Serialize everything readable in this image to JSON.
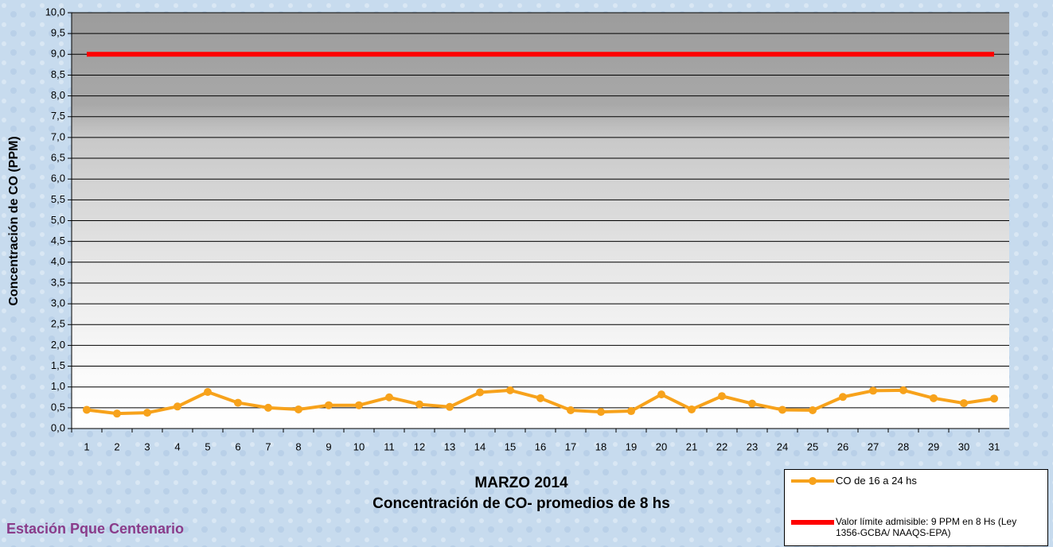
{
  "chart_data": {
    "type": "line",
    "title": "MARZO 2014",
    "subtitle": "Concentración de CO- promedios de 8 hs",
    "annotation": "Estación Pque Centenario",
    "y_label": "Concentración de CO (PPM)",
    "categories": [
      "1",
      "2",
      "3",
      "4",
      "5",
      "6",
      "7",
      "8",
      "9",
      "10",
      "11",
      "12",
      "13",
      "14",
      "15",
      "16",
      "17",
      "18",
      "19",
      "20",
      "21",
      "22",
      "23",
      "24",
      "25",
      "26",
      "27",
      "28",
      "29",
      "30",
      "31"
    ],
    "series": [
      {
        "name": "CO de 16 a 24 hs",
        "color": "#f7a21b",
        "marker": true,
        "values": [
          0.45,
          0.36,
          0.38,
          0.53,
          0.88,
          0.62,
          0.5,
          0.46,
          0.56,
          0.56,
          0.75,
          0.58,
          0.52,
          0.87,
          0.92,
          0.73,
          0.44,
          0.4,
          0.42,
          0.82,
          0.46,
          0.78,
          0.6,
          0.45,
          0.44,
          0.76,
          0.91,
          0.92,
          0.73,
          0.61,
          0.72
        ]
      },
      {
        "name": "Valor límite admisible: 9 PPM en 8 Hs (Ley 1356-GCBA/ NAAQS-EPA)",
        "color": "#ff0000",
        "marker": false,
        "values": [
          9,
          9,
          9,
          9,
          9,
          9,
          9,
          9,
          9,
          9,
          9,
          9,
          9,
          9,
          9,
          9,
          9,
          9,
          9,
          9,
          9,
          9,
          9,
          9,
          9,
          9,
          9,
          9,
          9,
          9,
          9
        ]
      }
    ],
    "ylim": [
      0,
      10
    ],
    "yticks": [
      {
        "value": 0,
        "label": "0,0"
      },
      {
        "value": 0.5,
        "label": "0,5"
      },
      {
        "value": 1,
        "label": "1,0"
      },
      {
        "value": 1.5,
        "label": "1,5"
      },
      {
        "value": 2,
        "label": "2,0"
      },
      {
        "value": 2.5,
        "label": "2,5"
      },
      {
        "value": 3,
        "label": "3,0"
      },
      {
        "value": 3.5,
        "label": "3,5"
      },
      {
        "value": 4,
        "label": "4,0"
      },
      {
        "value": 4.5,
        "label": "4,5"
      },
      {
        "value": 5,
        "label": "5,0"
      },
      {
        "value": 5.5,
        "label": "5,5"
      },
      {
        "value": 6,
        "label": "6,0"
      },
      {
        "value": 6.5,
        "label": "6,5"
      },
      {
        "value": 7,
        "label": "7,0"
      },
      {
        "value": 7.5,
        "label": "7,5"
      },
      {
        "value": 8,
        "label": "8,0"
      },
      {
        "value": 8.5,
        "label": "8,5"
      },
      {
        "value": 9,
        "label": "9,0"
      },
      {
        "value": 9.5,
        "label": "9,5"
      },
      {
        "value": 10,
        "label": "10,0"
      }
    ],
    "grid": true,
    "legend": "bottom-right"
  }
}
